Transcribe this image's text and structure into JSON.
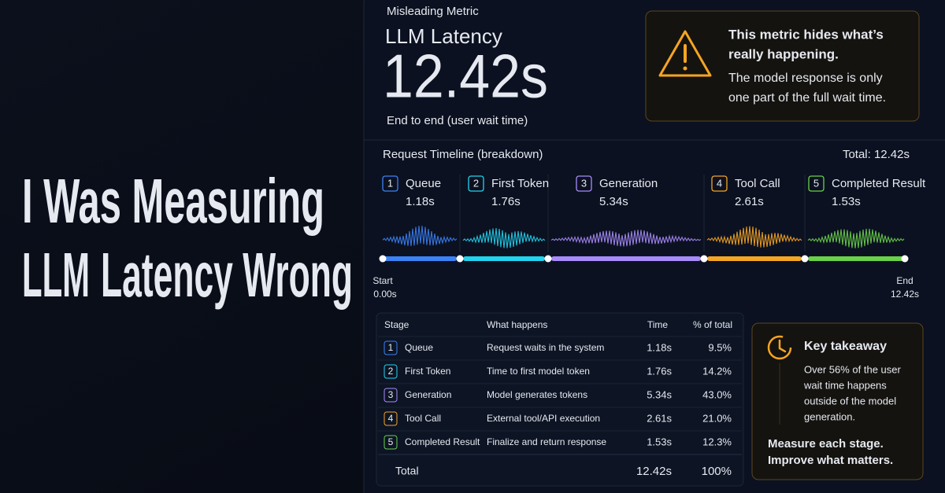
{
  "headline": {
    "line1": "I Was Measuring",
    "line2a": "LLM",
    "line2b": "Latency Wrong"
  },
  "header": {
    "label": "Misleading Metric",
    "title": "LLM Latency",
    "value": "12.42s",
    "caption": "End to end (user wait time)"
  },
  "warning": {
    "title_lines": [
      "This metric hides what’s",
      "really happening."
    ],
    "body_lines": [
      "The model response is only",
      "one part of the full wait time."
    ]
  },
  "timeline": {
    "title": "Request Timeline (breakdown)",
    "total": "Total: 12.42s",
    "stages": [
      {
        "num": "1",
        "name": "Queue",
        "time": "1.18s",
        "color": "#3b82f6"
      },
      {
        "num": "2",
        "name": "First Token",
        "time": "1.76s",
        "color": "#22d3ee"
      },
      {
        "num": "3",
        "name": "Generation",
        "time": "5.34s",
        "color": "#a78bfa"
      },
      {
        "num": "4",
        "name": "Tool Call",
        "time": "2.61s",
        "color": "#f5a524"
      },
      {
        "num": "5",
        "name": "Completed Result",
        "time": "1.53s",
        "color": "#6ad14a"
      }
    ],
    "start": {
      "label": "Start",
      "value": "0.00s"
    },
    "end": {
      "label": "End",
      "value": "12.42s"
    }
  },
  "table": {
    "columns": [
      "Stage",
      "What happens",
      "Time",
      "% of total"
    ],
    "rows": [
      [
        "1",
        "Queue",
        "Request waits in the system",
        "1.18s",
        "9.5%"
      ],
      [
        "2",
        "First Token",
        "Time to first model token",
        "1.76s",
        "14.2%"
      ],
      [
        "3",
        "Generation",
        "Model generates tokens",
        "5.34s",
        "43.0%"
      ],
      [
        "4",
        "Tool Call",
        "External tool/API execution",
        "2.61s",
        "21.0%"
      ],
      [
        "5",
        "Completed Result",
        "Finalize and return response",
        "1.53s",
        "12.3%"
      ]
    ],
    "total": {
      "label": "Total",
      "time": "12.42s",
      "pct": "100%"
    }
  },
  "takeaway": {
    "title": "Key takeaway",
    "body_lines": [
      "Over 56% of the user",
      "wait time happens",
      "outside of the model",
      "generation."
    ],
    "cta_lines": [
      "Measure each stage.",
      "Improve what matters."
    ]
  }
}
